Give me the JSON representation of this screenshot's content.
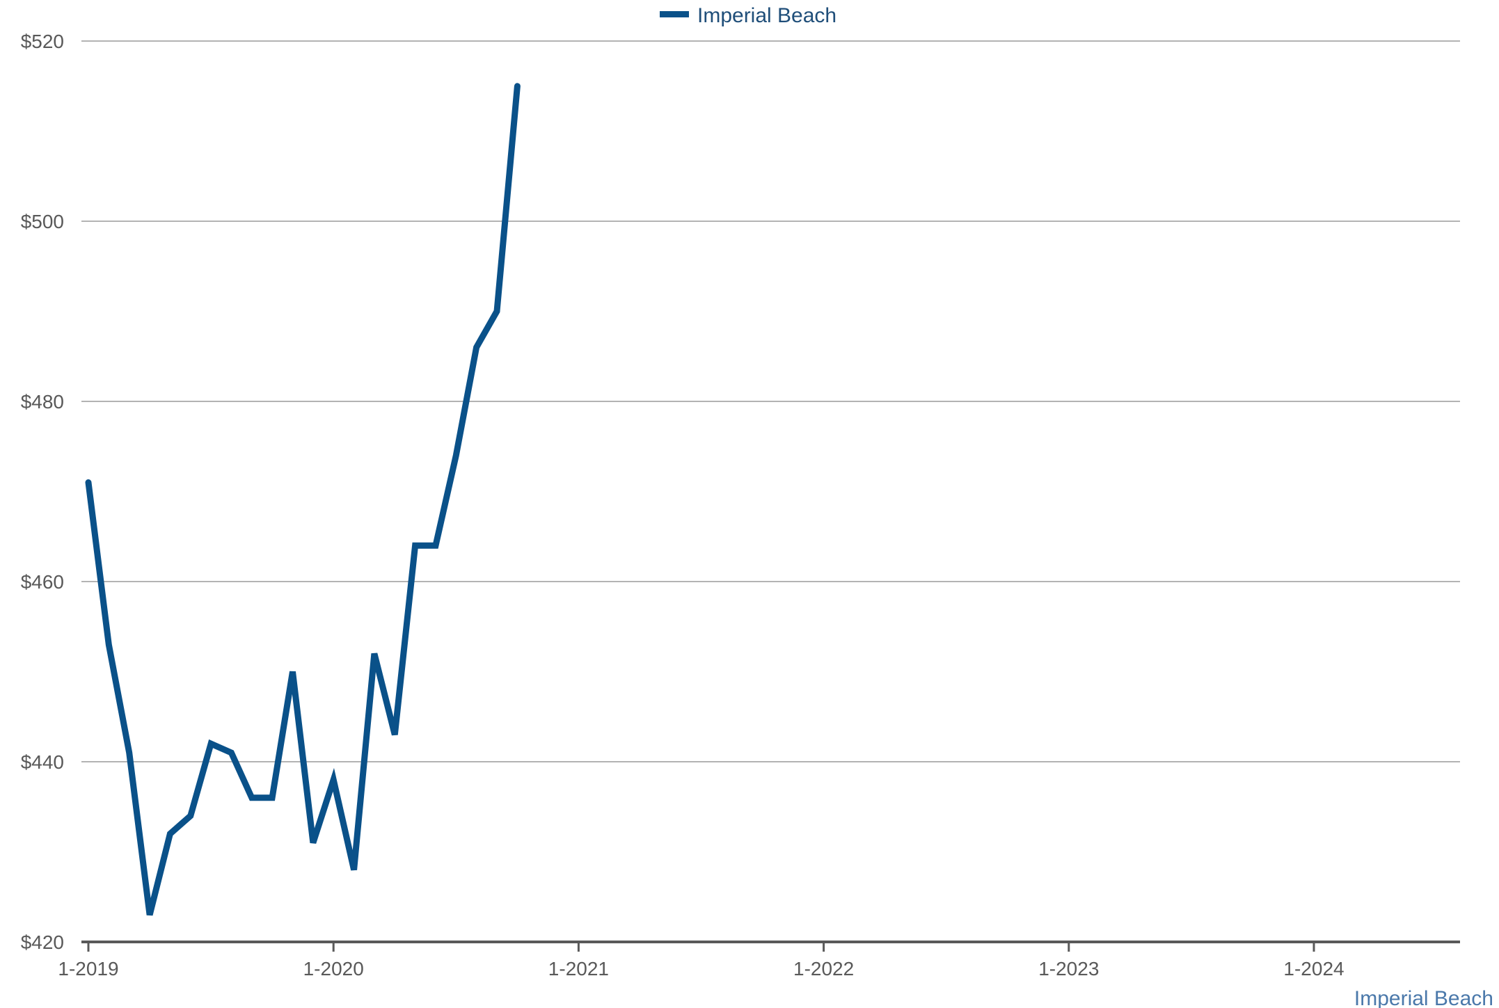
{
  "chart_data": {
    "type": "line",
    "legend": {
      "position": "top-center"
    },
    "footer_label": "Imperial Beach",
    "colors": {
      "series": "#0a5189",
      "footer": "#4a78aa",
      "legend_text": "#1f4e79",
      "grid": "#b3b3b3",
      "axis": "#595959",
      "tick_text": "#595959"
    },
    "grid": true,
    "ylim": [
      420,
      520
    ],
    "yticks": [
      420,
      440,
      460,
      480,
      500,
      520
    ],
    "ytick_labels": [
      "$420",
      "$440",
      "$460",
      "$480",
      "$500",
      "$520"
    ],
    "xlim": [
      "2019-01",
      "2024-04"
    ],
    "xticks": [
      "2019-01",
      "2020-01",
      "2021-01",
      "2022-01",
      "2023-01",
      "2024-01"
    ],
    "xtick_labels": [
      "1-2019",
      "1-2020",
      "1-2021",
      "1-2022",
      "1-2023",
      "1-2024"
    ],
    "series": [
      {
        "name": "Imperial Beach",
        "points": [
          {
            "x": "2019-01",
            "y": 471
          },
          {
            "x": "2019-02",
            "y": 453
          },
          {
            "x": "2019-03",
            "y": 441
          },
          {
            "x": "2019-04",
            "y": 423
          },
          {
            "x": "2019-05",
            "y": 432
          },
          {
            "x": "2019-06",
            "y": 434
          },
          {
            "x": "2019-07",
            "y": 442
          },
          {
            "x": "2019-08",
            "y": 441
          },
          {
            "x": "2019-09",
            "y": 436
          },
          {
            "x": "2019-10",
            "y": 436
          },
          {
            "x": "2019-11",
            "y": 450
          },
          {
            "x": "2019-12",
            "y": 431
          },
          {
            "x": "2020-01",
            "y": 438
          },
          {
            "x": "2020-02",
            "y": 428
          },
          {
            "x": "2020-03",
            "y": 452
          },
          {
            "x": "2020-04",
            "y": 443
          },
          {
            "x": "2020-05",
            "y": 464
          },
          {
            "x": "2020-06",
            "y": 464
          },
          {
            "x": "2020-07",
            "y": 474
          },
          {
            "x": "2020-08",
            "y": 486
          },
          {
            "x": "2020-09",
            "y": 490
          },
          {
            "x": "2020-10",
            "y": 515
          }
        ]
      }
    ]
  }
}
